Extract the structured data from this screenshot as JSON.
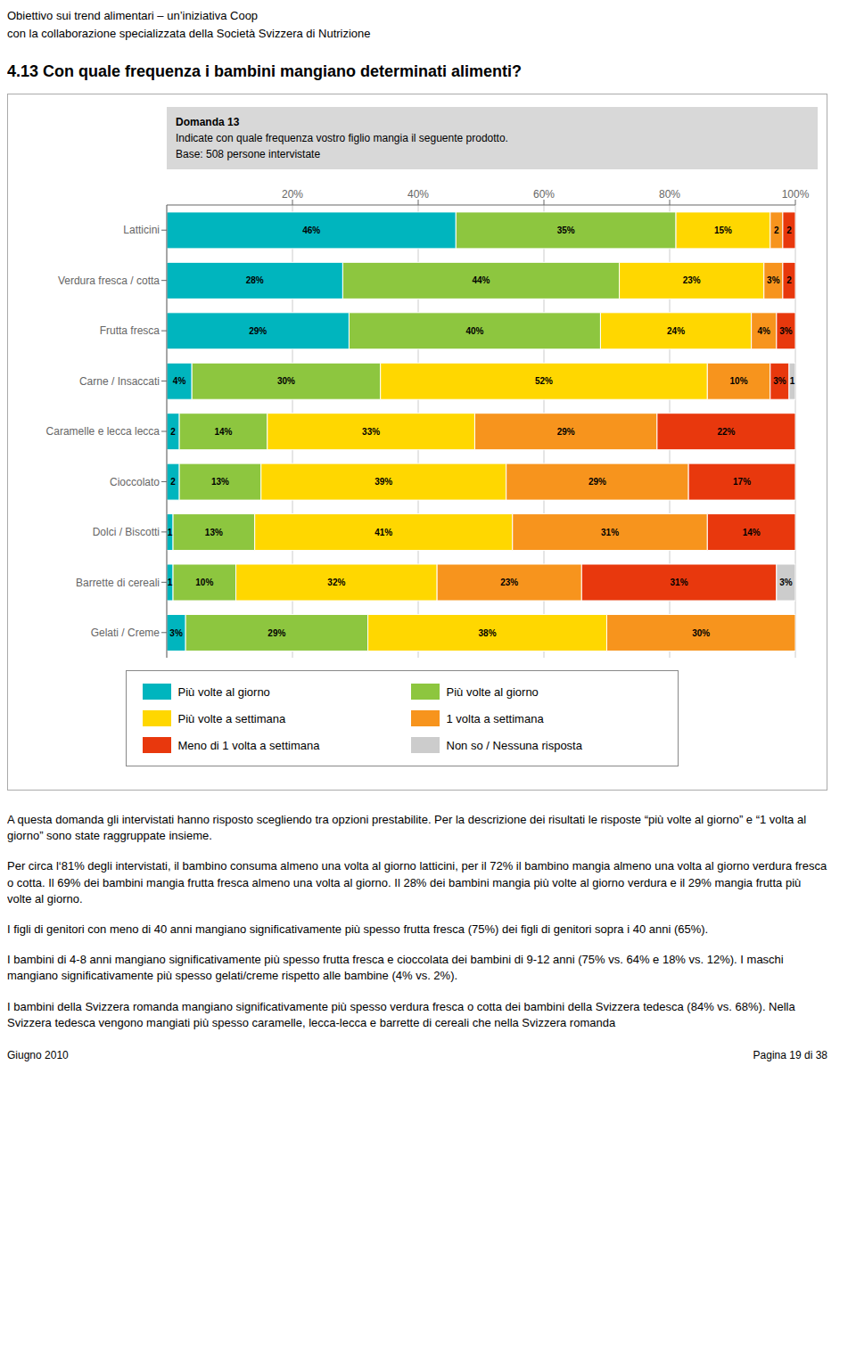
{
  "chart_data": {
    "type": "bar",
    "title": "4.13  Con quale frequenza i bambini mangiano determinati alimenti?",
    "header": [
      "Obiettivo sui trend alimentari – un’iniziativa Coop",
      "con la collaborazione specializzata della Società Svizzera di Nutrizione"
    ],
    "question": [
      "Domanda 13",
      "Indicate con quale frequenza vostro figlio mangia il seguente prodotto.",
      "Base: 508 persone intervistate"
    ],
    "notes": [
      "A questa domanda gli intervistati hanno risposto scegliendo tra opzioni prestabilite. Per la descrizione dei risultati le risposte “più volte al giorno” e “1 volta al giorno” sono state raggruppate insieme.",
      "Per circa l‘81% degli intervistati, il bambino consuma almeno una volta al giorno latticini, per il 72% il bambino mangia almeno una volta al giorno verdura fresca o cotta. Il 69% dei bambini mangia frutta fresca almeno una volta al giorno. Il 28% dei bambini mangia più volte al giorno verdura e il 29% mangia frutta più volte al giorno.",
      "I figli di genitori con meno di 40 anni mangiano significativamente più spesso frutta fresca (75%) dei figli di genitori sopra i 40 anni (65%).",
      "I bambini di 4-8 anni mangiano significativamente più spesso frutta fresca e cioccolata dei bambini di 9-12 anni (75% vs. 64% e 18% vs. 12%). I maschi mangiano significativamente più spesso gelati/creme rispetto alle bambine (4% vs. 2%).",
      "I bambini della Svizzera romanda mangiano significativamente più spesso verdura fresca o cotta dei bambini della Svizzera tedesca (84% vs. 68%). Nella Svizzera tedesca vengono mangiati più spesso caramelle, lecca-lecca e barrette di cereali che nella Svizzera romanda"
    ],
    "footer": [
      "Giugno 2010",
      "Pagina 19 di 38"
    ],
    "orientation": "horizontal",
    "stacked": true,
    "data_labels": true,
    "grid": true,
    "legend": "bottom",
    "categories": [
      "Latticini",
      "Verdura fresca / cotta",
      "Frutta fresca",
      "Carne / Insaccati",
      "Caramelle e lecca lecca",
      "Cioccolato",
      "Dolci / Biscotti",
      "Barrette di cereali",
      "Gelati / Creme"
    ],
    "xlim": [
      0,
      100
    ],
    "xticks": [
      {
        "value": 20,
        "label": "20%"
      },
      {
        "value": 40,
        "label": "40%"
      },
      {
        "value": 60,
        "label": "60%"
      },
      {
        "value": 80,
        "label": "80%"
      },
      {
        "value": 100,
        "label": "100%"
      }
    ],
    "series": [
      {
        "name": "Più volte al giorno",
        "color": "#00b5be",
        "values": [
          46,
          28,
          29,
          4,
          2,
          2,
          1,
          1,
          3
        ],
        "value_labels": [
          "46%",
          "28%",
          "29%",
          "4%",
          "2",
          "2",
          "1",
          "1",
          "3%"
        ]
      },
      {
        "name": "Più volte al giorno",
        "color": "#8dc63f",
        "values": [
          35,
          44,
          40,
          30,
          14,
          13,
          13,
          10,
          29
        ],
        "value_labels": [
          "35%",
          "44%",
          "40%",
          "30%",
          "14%",
          "13%",
          "13%",
          "10%",
          "29%"
        ]
      },
      {
        "name": "Più volte a settimana",
        "color": "#ffd700",
        "values": [
          15,
          23,
          24,
          52,
          33,
          39,
          41,
          32,
          38
        ],
        "value_labels": [
          "15%",
          "23%",
          "24%",
          "52%",
          "33%",
          "39%",
          "41%",
          "32%",
          "38%"
        ]
      },
      {
        "name": "1 volta a settimana",
        "color": "#f7941d",
        "values": [
          2,
          3,
          4,
          10,
          29,
          29,
          31,
          23,
          30
        ],
        "value_labels": [
          "2",
          "3%",
          "4%",
          "10%",
          "29%",
          "29%",
          "31%",
          "23%",
          "30%"
        ]
      },
      {
        "name": "Meno di 1 volta a settimana",
        "color": "#e8380d",
        "values": [
          2,
          2,
          3,
          3,
          22,
          17,
          14,
          31,
          null
        ],
        "value_labels": [
          "2",
          "2",
          "3%",
          "3%",
          "22%",
          "17%",
          "14%",
          "31%",
          null
        ]
      },
      {
        "name": "Non so / Nessuna risposta",
        "color": "#cccccc",
        "values": [
          null,
          null,
          null,
          1,
          null,
          null,
          null,
          3,
          null
        ],
        "value_labels": [
          null,
          null,
          null,
          "1",
          null,
          null,
          null,
          "3%",
          null
        ]
      }
    ]
  }
}
